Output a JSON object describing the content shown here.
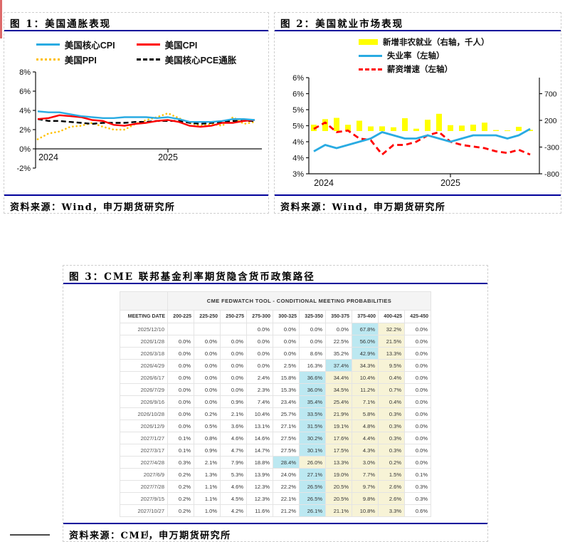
{
  "colors": {
    "navy_rule": "#00009B",
    "red_strip": "#DD6A6A",
    "core_cpi_blue": "#29ABE2",
    "cpi_red": "#FF0000",
    "ppi_yellow": "#FFC000",
    "pce_black": "#000000",
    "payroll_bar_yellow": "#FFFF00",
    "highlight_max_blue": "#BCE8F1",
    "highlight_path_yellow": "#F7F3D6"
  },
  "fig1": {
    "title": "图 1：美国通胀表现",
    "source": "资料来源：Wind，申万期货研究所"
  },
  "fig2": {
    "title": "图 2：美国就业市场表现",
    "source": "资料来源：Wind，申万期货研究所"
  },
  "fig3": {
    "title": "图 3：CME 联邦基金利率期货隐含货币政策路径",
    "source": "资料来源：CME，申万期货研究所"
  },
  "chart_data": [
    {
      "id": "fig1",
      "type": "line",
      "title": "美国通胀表现",
      "x_tick_labels": [
        "2024",
        "2025"
      ],
      "x_range": "2024-01 to 2025-09 monthly",
      "ylim": [
        -2,
        8
      ],
      "y_tick_values": [
        8,
        6,
        4,
        2,
        0,
        -2
      ],
      "y_tick_labels": [
        "8%",
        "6%",
        "4%",
        "2%",
        "0%",
        "-2%"
      ],
      "legend_position": "top-center",
      "series": [
        {
          "name": "美国核心CPI",
          "color": "#29ABE2",
          "style": "solid",
          "values": [
            3.9,
            3.8,
            3.8,
            3.6,
            3.4,
            3.3,
            3.2,
            3.2,
            3.3,
            3.3,
            3.3,
            3.2,
            3.3,
            3.1,
            2.8,
            2.8,
            2.8,
            2.9,
            3.1,
            3.1,
            3.0
          ]
        },
        {
          "name": "美国CPI",
          "color": "#FF0000",
          "style": "solid",
          "values": [
            3.1,
            3.2,
            3.5,
            3.4,
            3.3,
            3.0,
            2.9,
            2.5,
            2.4,
            2.6,
            2.7,
            2.9,
            3.0,
            2.8,
            2.4,
            2.3,
            2.4,
            2.7,
            2.7,
            2.9,
            3.0
          ]
        },
        {
          "name": "美国PPI",
          "color": "#FFC000",
          "style": "dotted",
          "values": [
            1.0,
            1.6,
            1.8,
            2.3,
            2.4,
            2.7,
            2.3,
            2.0,
            2.0,
            2.6,
            3.0,
            3.3,
            3.7,
            3.2,
            2.7,
            2.4,
            2.6,
            2.4,
            3.3,
            2.6,
            2.8
          ]
        },
        {
          "name": "美国核心PCE通胀",
          "color": "#000000",
          "style": "dashed",
          "values": [
            3.1,
            2.9,
            2.9,
            2.8,
            2.7,
            2.6,
            2.7,
            2.7,
            2.7,
            2.8,
            2.8,
            2.9,
            2.9,
            2.9,
            2.7,
            2.6,
            2.7,
            2.8,
            2.9,
            2.9,
            2.9
          ]
        }
      ]
    },
    {
      "id": "fig2",
      "type": "combo",
      "title": "美国就业市场表现",
      "x_tick_labels": [
        "2024",
        "2025"
      ],
      "x_range": "2024-01 to 2025-08 monthly",
      "left_axis": {
        "range": [
          3,
          6
        ],
        "tick_labels": [
          "6%",
          "6%",
          "5%",
          "5%",
          "4%",
          "4%",
          "3%"
        ]
      },
      "right_axis": {
        "range": [
          -800,
          700
        ],
        "tick_labels": [
          "700",
          "200",
          "-300",
          "-800"
        ]
      },
      "legend_position": "top-left",
      "series": [
        {
          "name": "新增非农就业（右轴，千人）",
          "chart": "bar",
          "axis": "right",
          "color": "#FFFF00",
          "style": "solid",
          "values": [
            119,
            222,
            246,
            118,
            193,
            87,
            88,
            71,
            240,
            44,
            212,
            323,
            111,
            102,
            120,
            158,
            19,
            14,
            79,
            22
          ]
        },
        {
          "name": "失业率（左轴）",
          "chart": "line",
          "axis": "left",
          "color": "#29ABE2",
          "style": "solid",
          "values": [
            3.7,
            3.9,
            3.8,
            3.9,
            4.0,
            4.1,
            4.3,
            4.2,
            4.1,
            4.1,
            4.2,
            4.1,
            4.0,
            4.1,
            4.2,
            4.2,
            4.2,
            4.1,
            4.2,
            4.4
          ]
        },
        {
          "name": "薪资增速（左轴）",
          "chart": "line",
          "axis": "left",
          "color": "#FF0000",
          "style": "dashed",
          "values": [
            4.4,
            4.6,
            4.3,
            4.35,
            4.1,
            4.05,
            3.6,
            3.9,
            3.9,
            4.0,
            4.2,
            4.3,
            4.0,
            3.9,
            3.85,
            3.8,
            3.7,
            3.65,
            3.75,
            3.6
          ]
        }
      ]
    },
    {
      "id": "fig3",
      "type": "table",
      "title": "CME FEDWATCH TOOL - CONDITIONAL MEETING PROBABILITIES",
      "date_column": "MEETING DATE",
      "columns": [
        "200-225",
        "225-250",
        "250-275",
        "275-300",
        "300-325",
        "325-350",
        "350-375",
        "375-400",
        "400-425",
        "425-450"
      ],
      "highlight": {
        "max_color": "#BCE8F1",
        "path_color": "#F7F3D6",
        "path_last_col_index": 8
      },
      "rows": [
        {
          "date": "2025/12/10",
          "max_col_index": 7,
          "values": [
            "",
            "",
            "",
            "0.0%",
            "0.0%",
            "0.0%",
            "0.0%",
            "67.8%",
            "32.2%",
            "0.0%"
          ]
        },
        {
          "date": "2026/1/28",
          "max_col_index": 7,
          "values": [
            "0.0%",
            "0.0%",
            "0.0%",
            "0.0%",
            "0.0%",
            "0.0%",
            "22.5%",
            "56.0%",
            "21.5%",
            "0.0%"
          ]
        },
        {
          "date": "2026/3/18",
          "max_col_index": 7,
          "values": [
            "0.0%",
            "0.0%",
            "0.0%",
            "0.0%",
            "0.0%",
            "8.6%",
            "35.2%",
            "42.9%",
            "13.3%",
            "0.0%"
          ]
        },
        {
          "date": "2026/4/29",
          "max_col_index": 6,
          "values": [
            "0.0%",
            "0.0%",
            "0.0%",
            "0.0%",
            "2.5%",
            "16.3%",
            "37.4%",
            "34.3%",
            "9.5%",
            "0.0%"
          ]
        },
        {
          "date": "2026/6/17",
          "max_col_index": 5,
          "values": [
            "0.0%",
            "0.0%",
            "0.0%",
            "2.4%",
            "15.8%",
            "36.6%",
            "34.4%",
            "10.4%",
            "0.4%",
            "0.0%"
          ]
        },
        {
          "date": "2026/7/29",
          "max_col_index": 5,
          "values": [
            "0.0%",
            "0.0%",
            "0.0%",
            "2.3%",
            "15.3%",
            "36.0%",
            "34.5%",
            "11.2%",
            "0.7%",
            "0.0%"
          ]
        },
        {
          "date": "2026/9/16",
          "max_col_index": 5,
          "values": [
            "0.0%",
            "0.0%",
            "0.9%",
            "7.4%",
            "23.4%",
            "35.4%",
            "25.4%",
            "7.1%",
            "0.4%",
            "0.0%"
          ]
        },
        {
          "date": "2026/10/28",
          "max_col_index": 5,
          "values": [
            "0.0%",
            "0.2%",
            "2.1%",
            "10.4%",
            "25.7%",
            "33.5%",
            "21.9%",
            "5.8%",
            "0.3%",
            "0.0%"
          ]
        },
        {
          "date": "2026/12/9",
          "max_col_index": 5,
          "values": [
            "0.0%",
            "0.5%",
            "3.6%",
            "13.1%",
            "27.1%",
            "31.5%",
            "19.1%",
            "4.8%",
            "0.3%",
            "0.0%"
          ]
        },
        {
          "date": "2027/1/27",
          "max_col_index": 5,
          "values": [
            "0.1%",
            "0.8%",
            "4.6%",
            "14.6%",
            "27.5%",
            "30.2%",
            "17.6%",
            "4.4%",
            "0.3%",
            "0.0%"
          ]
        },
        {
          "date": "2027/3/17",
          "max_col_index": 5,
          "values": [
            "0.1%",
            "0.9%",
            "4.7%",
            "14.7%",
            "27.5%",
            "30.1%",
            "17.5%",
            "4.3%",
            "0.3%",
            "0.0%"
          ]
        },
        {
          "date": "2027/4/28",
          "max_col_index": 4,
          "values": [
            "0.3%",
            "2.1%",
            "7.9%",
            "18.8%",
            "28.4%",
            "26.0%",
            "13.3%",
            "3.0%",
            "0.2%",
            "0.0%"
          ]
        },
        {
          "date": "2027/6/9",
          "max_col_index": 5,
          "values": [
            "0.2%",
            "1.3%",
            "5.3%",
            "13.9%",
            "24.0%",
            "27.1%",
            "19.0%",
            "7.7%",
            "1.5%",
            "0.1%"
          ]
        },
        {
          "date": "2027/7/28",
          "max_col_index": 5,
          "values": [
            "0.2%",
            "1.1%",
            "4.6%",
            "12.3%",
            "22.2%",
            "26.5%",
            "20.5%",
            "9.7%",
            "2.6%",
            "0.3%"
          ]
        },
        {
          "date": "2027/9/15",
          "max_col_index": 5,
          "values": [
            "0.2%",
            "1.1%",
            "4.5%",
            "12.3%",
            "22.1%",
            "26.5%",
            "20.5%",
            "9.8%",
            "2.6%",
            "0.3%"
          ]
        },
        {
          "date": "2027/10/27",
          "max_col_index": 5,
          "values": [
            "0.2%",
            "1.0%",
            "4.2%",
            "11.6%",
            "21.2%",
            "26.1%",
            "21.1%",
            "10.8%",
            "3.3%",
            "0.6%"
          ]
        }
      ]
    }
  ]
}
